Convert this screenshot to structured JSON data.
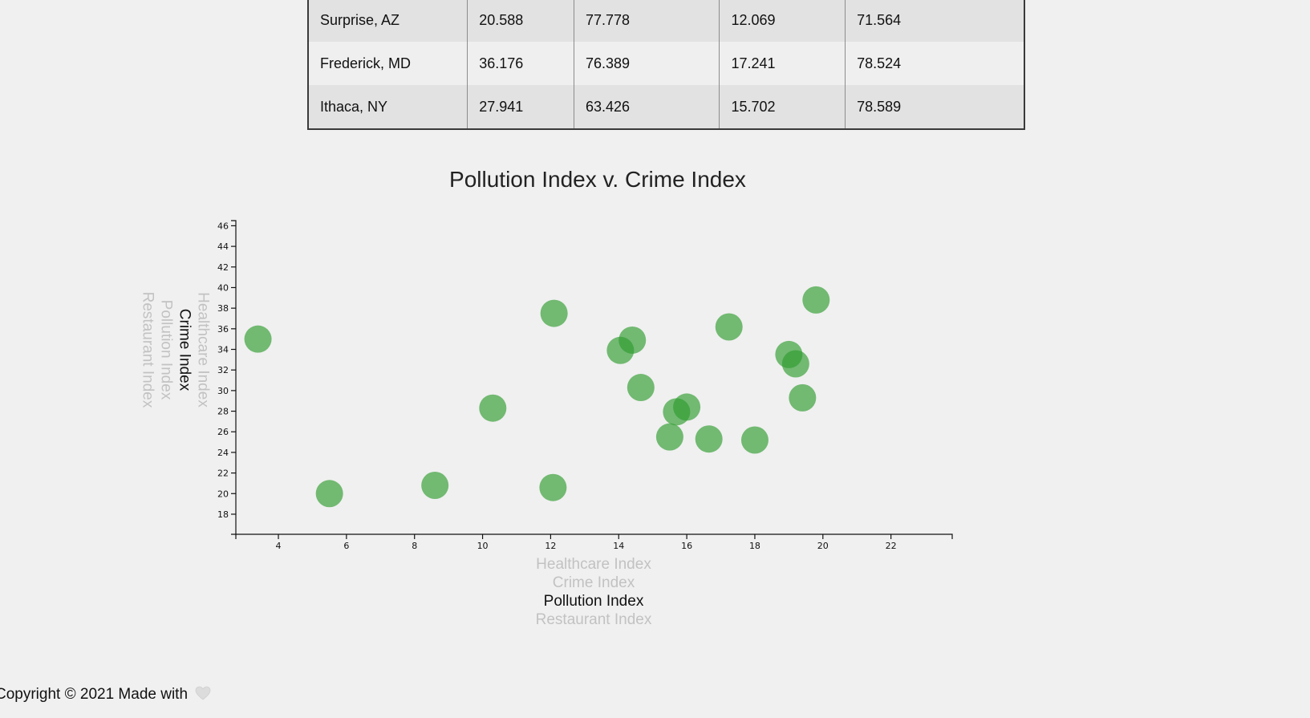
{
  "table": {
    "rows": [
      [
        "Surprise, AZ",
        "20.588",
        "77.778",
        "12.069",
        "71.564"
      ],
      [
        "Frederick, MD",
        "36.176",
        "76.389",
        "17.241",
        "78.524"
      ],
      [
        "Ithaca, NY",
        "27.941",
        "63.426",
        "15.702",
        "78.589"
      ]
    ]
  },
  "chart": {
    "title": "Pollution Index v. Crime Index",
    "x_axis_options": [
      "Healthcare Index",
      "Crime Index",
      "Pollution Index",
      "Restaurant Index"
    ],
    "x_axis_active": "Pollution Index",
    "y_axis_options": [
      "Healthcare Index",
      "Crime Index",
      "Pollution Index",
      "Restaurant Index"
    ],
    "y_axis_active": "Crime Index"
  },
  "chart_data": {
    "type": "scatter",
    "title": "Pollution Index v. Crime Index",
    "xlabel": "Pollution Index",
    "ylabel": "Crime Index",
    "xlim": [
      2.75,
      23.8
    ],
    "ylim": [
      16.05,
      46.5
    ],
    "x_ticks": [
      4,
      6,
      8,
      10,
      12,
      14,
      16,
      18,
      20,
      22
    ],
    "y_ticks": [
      18,
      20,
      22,
      24,
      26,
      28,
      30,
      32,
      34,
      36,
      38,
      40,
      42,
      44,
      46
    ],
    "grid": false,
    "point_color": "#2e9b2e",
    "points": [
      {
        "x": 3.4,
        "y": 35.0
      },
      {
        "x": 5.5,
        "y": 20.0
      },
      {
        "x": 8.6,
        "y": 20.8
      },
      {
        "x": 10.3,
        "y": 28.3
      },
      {
        "x": 12.07,
        "y": 20.59
      },
      {
        "x": 12.1,
        "y": 37.5
      },
      {
        "x": 14.05,
        "y": 33.9
      },
      {
        "x": 14.4,
        "y": 34.9
      },
      {
        "x": 14.65,
        "y": 30.3
      },
      {
        "x": 15.5,
        "y": 25.5
      },
      {
        "x": 15.7,
        "y": 27.94
      },
      {
        "x": 16.0,
        "y": 28.4
      },
      {
        "x": 16.65,
        "y": 25.3
      },
      {
        "x": 17.24,
        "y": 36.18
      },
      {
        "x": 18.0,
        "y": 25.2
      },
      {
        "x": 19.0,
        "y": 33.5
      },
      {
        "x": 19.2,
        "y": 32.6
      },
      {
        "x": 19.4,
        "y": 29.3
      },
      {
        "x": 19.8,
        "y": 38.8
      }
    ]
  },
  "footer": {
    "text": "Copyright © 2021 Made with",
    "heart_icon": "heart-icon",
    "heart_color": "#dcdcdc"
  }
}
